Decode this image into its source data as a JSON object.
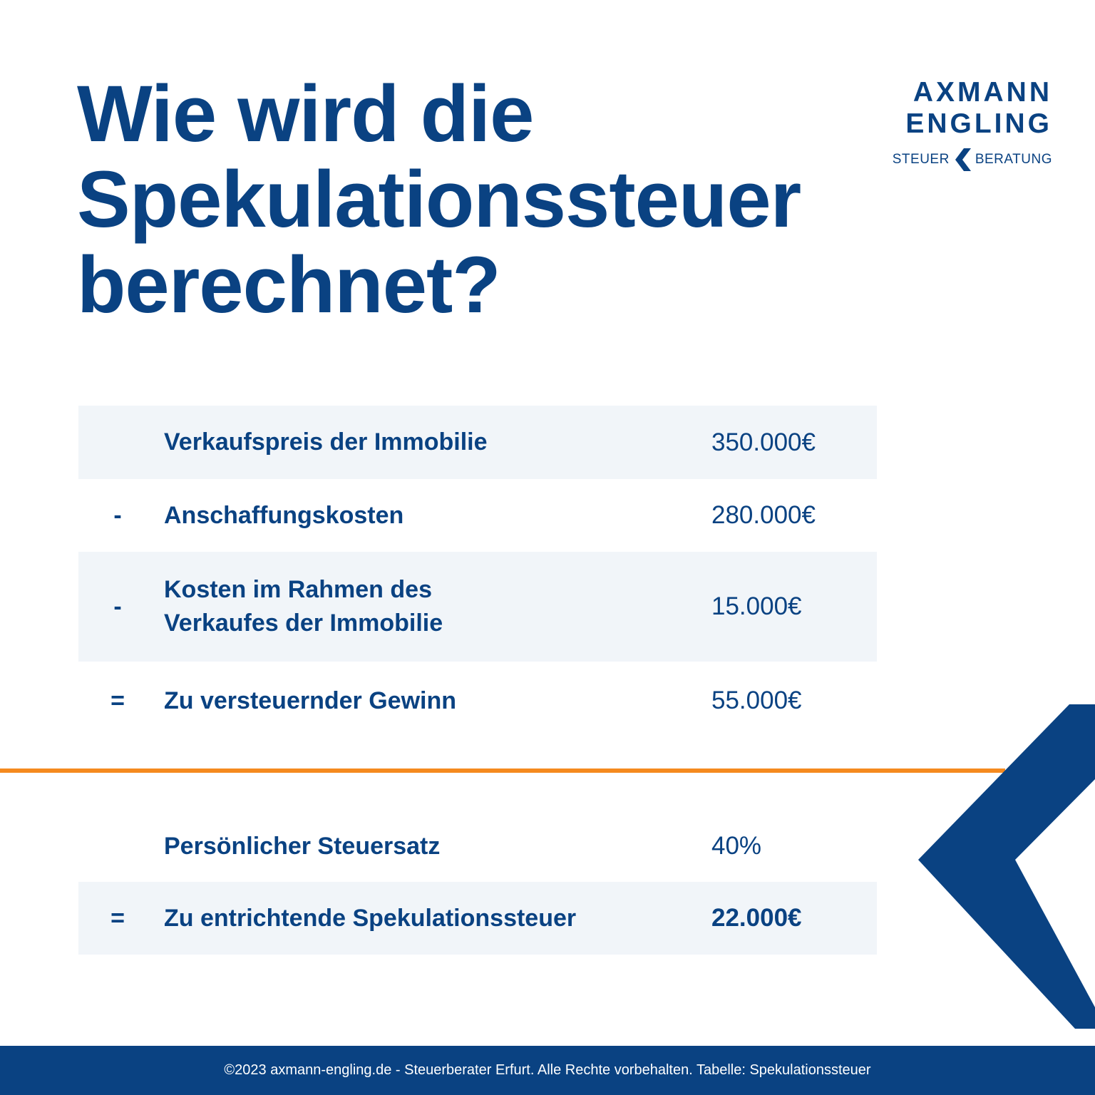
{
  "title": {
    "line1": "Wie wird die",
    "line2": "Spekulationssteuer",
    "line3": "berechnet?"
  },
  "logo": {
    "line1": "AXMANN",
    "line2": "ENGLING",
    "left_word": "STEUER",
    "right_word": "BERATUNG",
    "separator_icon": "chevron-left-icon"
  },
  "table": {
    "rows": [
      {
        "operator": "",
        "label_line1": "Verkaufspreis der Immobilie",
        "label_line2": "",
        "value": "350.000€"
      },
      {
        "operator": "-",
        "label_line1": "Anschaffungskosten",
        "label_line2": "",
        "value": "280.000€"
      },
      {
        "operator": "-",
        "label_line1": "Kosten im Rahmen des",
        "label_line2": "Verkaufes der Immobilie",
        "value": "15.000€"
      },
      {
        "operator": "=",
        "label_line1": "Zu versteuernder Gewinn",
        "label_line2": "",
        "value": "55.000€"
      }
    ],
    "rows_after_divider": [
      {
        "operator": "",
        "label_line1": "Persönlicher Steuersatz",
        "label_line2": "",
        "value": "40%"
      },
      {
        "operator": "=",
        "label_line1": "Zu entrichtende Spekulationssteuer",
        "label_line2": "",
        "value": "22.000€"
      }
    ]
  },
  "footer": {
    "text": "©2023 axmann-engling.de - Steuerberater Erfurt. Alle Rechte vorbehalten. Tabelle: Spekulationssteuer"
  },
  "colors": {
    "brand_blue": "#0a4282",
    "row_shade": "#f1f5f9",
    "divider_orange": "#f58a1f",
    "background": "#ffffff"
  }
}
